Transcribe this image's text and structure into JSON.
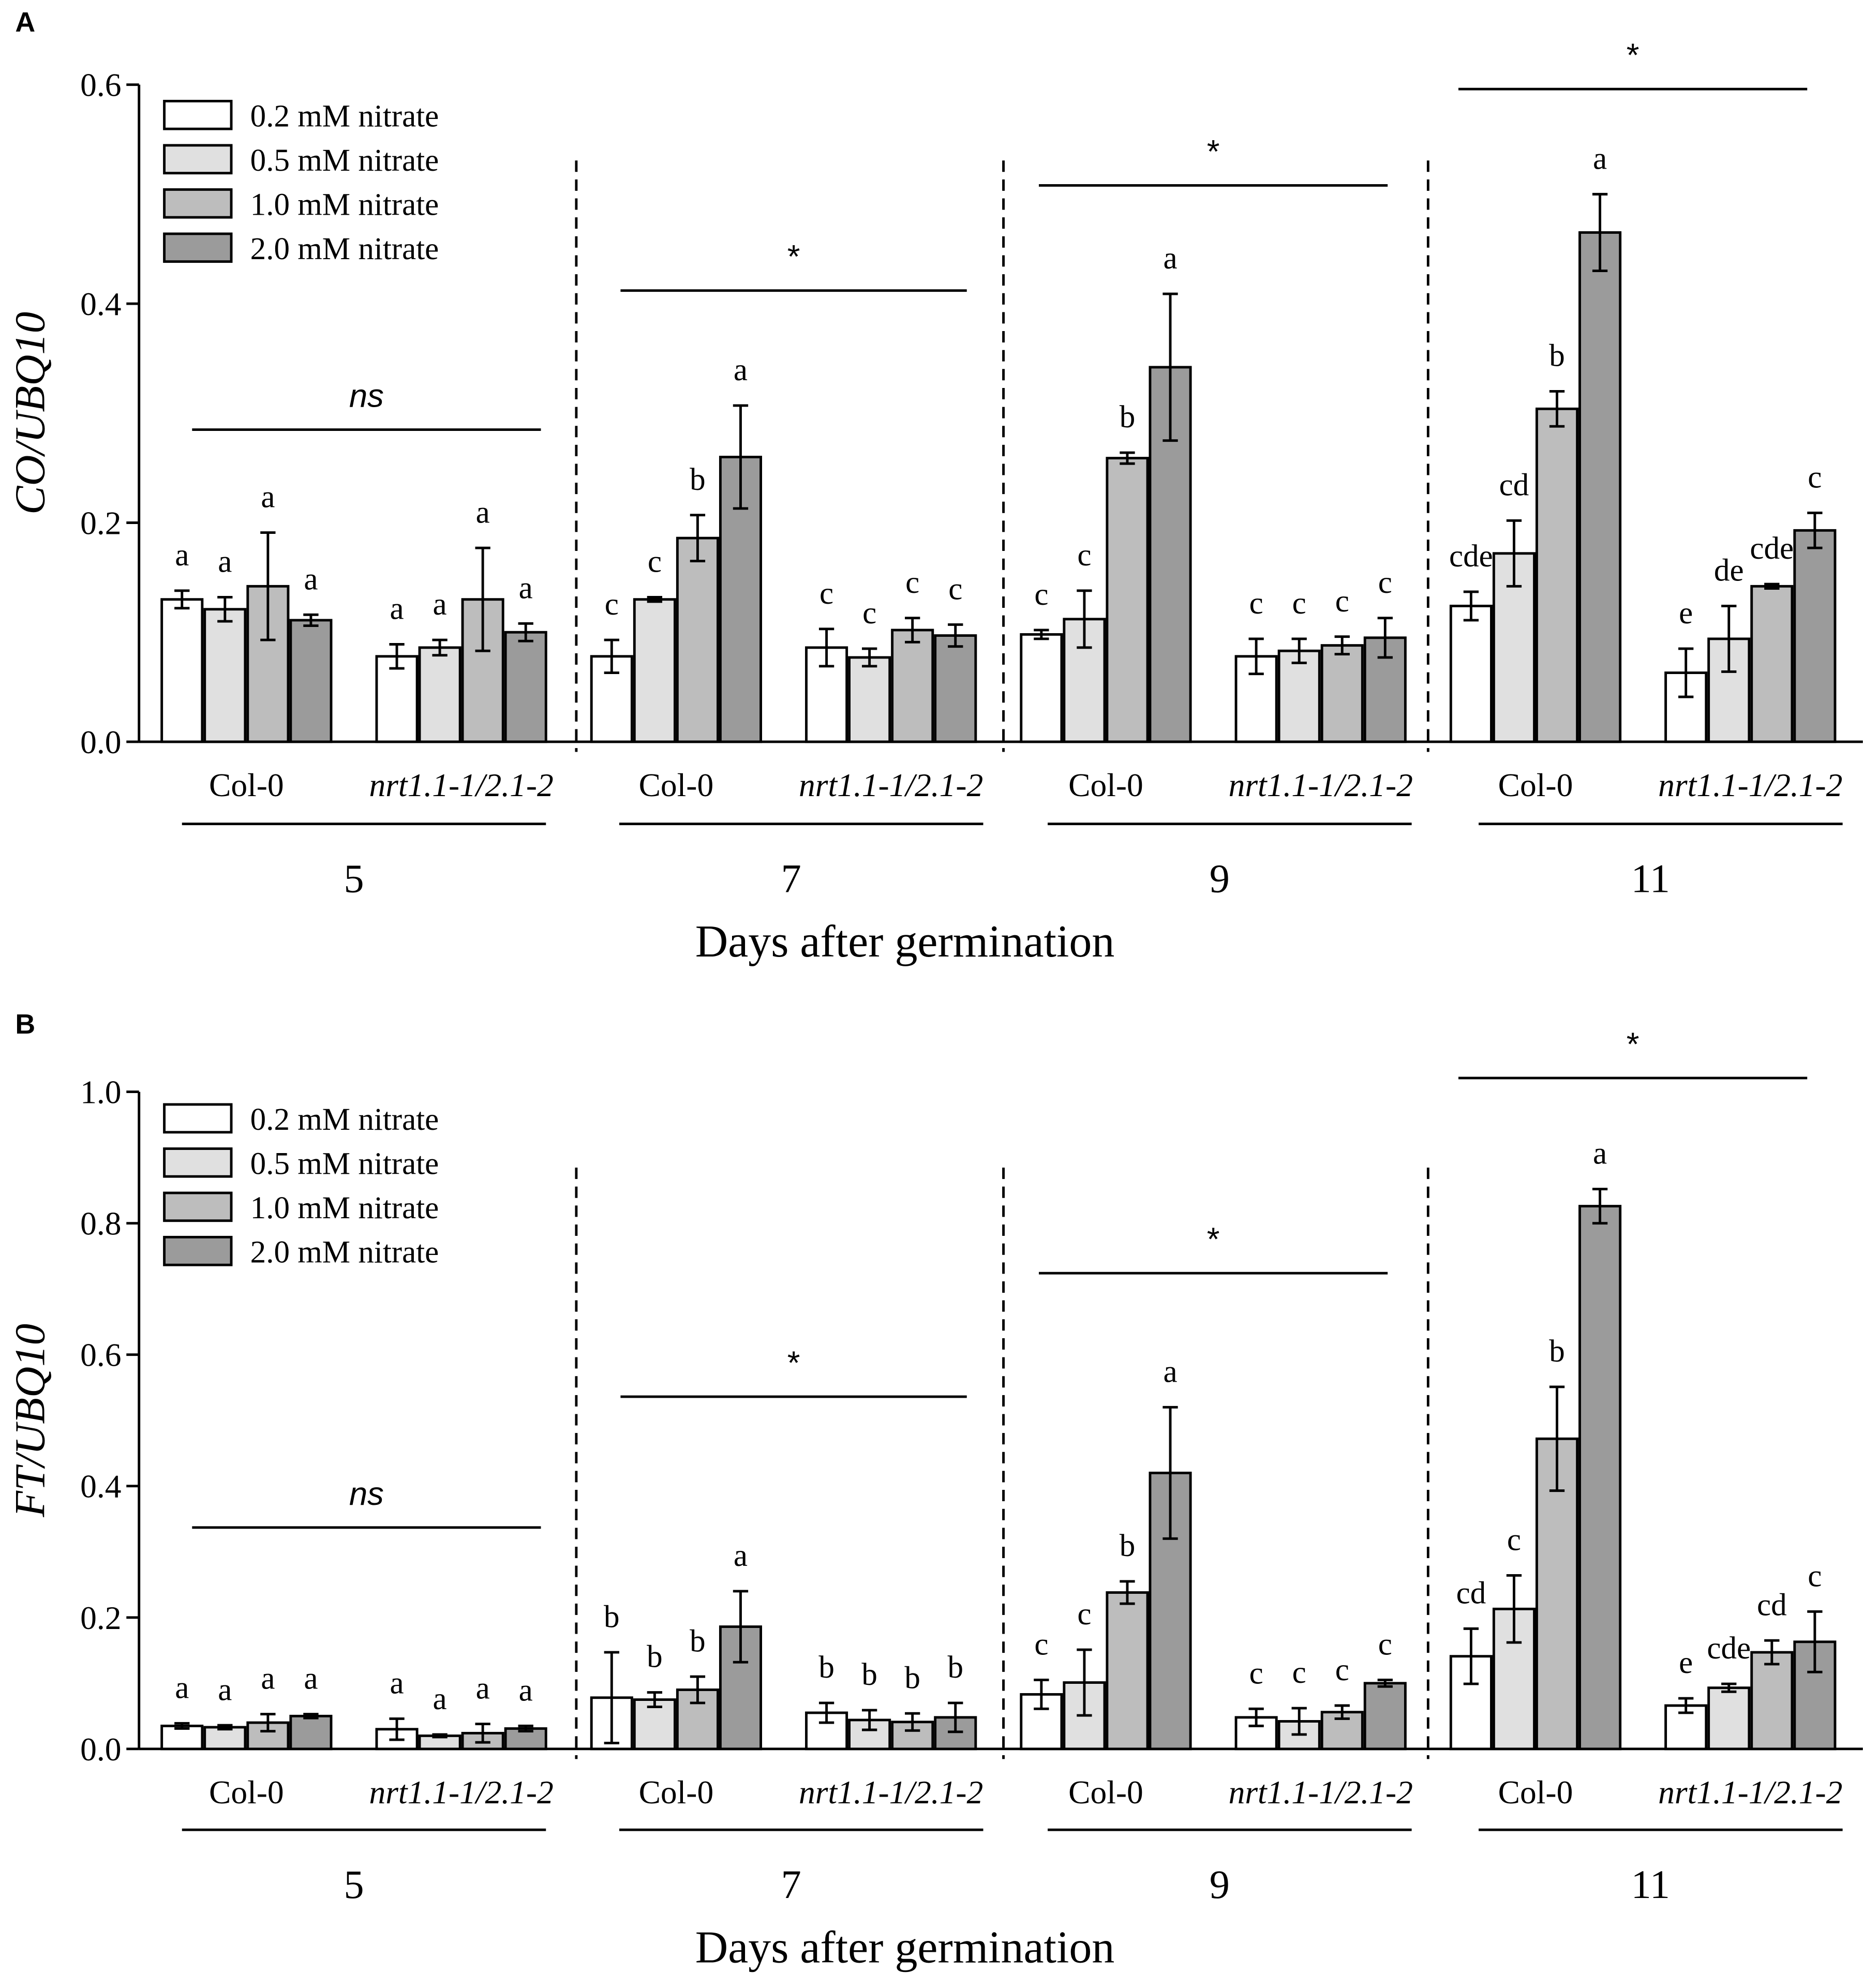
{
  "colors": {
    "c0.2": "#ffffff",
    "c0.5": "#e0e0e0",
    "c1.0": "#bdbdbd",
    "c2.0": "#9b9b9b",
    "ink": "#000000"
  },
  "legend": [
    "0.2 mM  nitrate",
    "0.5 mM  nitrate",
    "1.0 mM  nitrate",
    "2.0 mM  nitrate"
  ],
  "genotypes": [
    "Col-0",
    "nrt1.1-1/2.1-2"
  ],
  "days": [
    "5",
    "7",
    "9",
    "11"
  ],
  "xlabel": "Days after germination",
  "chart_data": [
    {
      "type": "bar",
      "panel": "A",
      "ylabel": "CO/UBQ10",
      "ylim": [
        0,
        0.6
      ],
      "yticks": [
        "0.0",
        "0.2",
        "0.4",
        "0.6"
      ],
      "groups": [
        {
          "day": "5",
          "genotype": "Col-0",
          "values": [
            0.13,
            0.121,
            0.142,
            0.111
          ],
          "errors": [
            0.008,
            0.011,
            0.049,
            0.005
          ],
          "letters": [
            "a",
            "a",
            "a",
            "a"
          ]
        },
        {
          "day": "5",
          "genotype": "nrt1.1-1/2.1-2",
          "values": [
            0.078,
            0.086,
            0.13,
            0.1
          ],
          "errors": [
            0.011,
            0.007,
            0.047,
            0.008
          ],
          "letters": [
            "a",
            "a",
            "a",
            "a"
          ]
        },
        {
          "day": "7",
          "genotype": "Col-0",
          "values": [
            0.078,
            0.13,
            0.186,
            0.26
          ],
          "errors": [
            0.015,
            0.002,
            0.021,
            0.047
          ],
          "letters": [
            "c",
            "c",
            "b",
            "a"
          ]
        },
        {
          "day": "7",
          "genotype": "nrt1.1-1/2.1-2",
          "values": [
            0.086,
            0.077,
            0.102,
            0.097
          ],
          "errors": [
            0.017,
            0.008,
            0.011,
            0.01
          ],
          "letters": [
            "c",
            "c",
            "c",
            "c"
          ]
        },
        {
          "day": "9",
          "genotype": "Col-0",
          "values": [
            0.098,
            0.112,
            0.259,
            0.342
          ],
          "errors": [
            0.004,
            0.026,
            0.005,
            0.067
          ],
          "letters": [
            "c",
            "c",
            "b",
            "a"
          ]
        },
        {
          "day": "9",
          "genotype": "nrt1.1-1/2.1-2",
          "values": [
            0.078,
            0.083,
            0.088,
            0.095
          ],
          "errors": [
            0.016,
            0.011,
            0.008,
            0.018
          ],
          "letters": [
            "c",
            "c",
            "c",
            "c"
          ]
        },
        {
          "day": "11",
          "genotype": "Col-0",
          "values": [
            0.124,
            0.172,
            0.304,
            0.465
          ],
          "errors": [
            0.013,
            0.03,
            0.016,
            0.035
          ],
          "letters": [
            "cde",
            "cd",
            "b",
            "a"
          ]
        },
        {
          "day": "11",
          "genotype": "nrt1.1-1/2.1-2",
          "values": [
            0.063,
            0.094,
            0.142,
            0.193
          ],
          "errors": [
            0.022,
            0.03,
            0.002,
            0.016
          ],
          "letters": [
            "e",
            "de",
            "cde",
            "c"
          ]
        }
      ],
      "significance": [
        {
          "day": "5",
          "label": "ns",
          "level": 0.285
        },
        {
          "day": "7",
          "label": "*",
          "level": 0.412
        },
        {
          "day": "9",
          "label": "*",
          "level": 0.508
        },
        {
          "day": "11",
          "label": "*",
          "level": 0.596
        }
      ],
      "legend_position": "top-left"
    },
    {
      "type": "bar",
      "panel": "B",
      "ylabel": "FT/UBQ10",
      "ylim": [
        0,
        1.0
      ],
      "yticks": [
        "0.0",
        "0.2",
        "0.4",
        "0.6",
        "0.8",
        "1.0"
      ],
      "groups": [
        {
          "day": "5",
          "genotype": "Col-0",
          "values": [
            0.035,
            0.033,
            0.04,
            0.05
          ],
          "errors": [
            0.004,
            0.003,
            0.013,
            0.003
          ],
          "letters": [
            "a",
            "a",
            "a",
            "a"
          ]
        },
        {
          "day": "5",
          "genotype": "nrt1.1-1/2.1-2",
          "values": [
            0.03,
            0.02,
            0.024,
            0.031
          ],
          "errors": [
            0.016,
            0.002,
            0.014,
            0.004
          ],
          "letters": [
            "a",
            "a",
            "a",
            "a"
          ]
        },
        {
          "day": "7",
          "genotype": "Col-0",
          "values": [
            0.078,
            0.075,
            0.09,
            0.186
          ],
          "errors": [
            0.069,
            0.011,
            0.02,
            0.054
          ],
          "letters": [
            "b",
            "b",
            "b",
            "a"
          ]
        },
        {
          "day": "7",
          "genotype": "nrt1.1-1/2.1-2",
          "values": [
            0.055,
            0.044,
            0.041,
            0.048
          ],
          "errors": [
            0.015,
            0.015,
            0.013,
            0.022
          ],
          "letters": [
            "b",
            "b",
            "b",
            "b"
          ]
        },
        {
          "day": "9",
          "genotype": "Col-0",
          "values": [
            0.083,
            0.101,
            0.238,
            0.42
          ],
          "errors": [
            0.022,
            0.05,
            0.017,
            0.1
          ],
          "letters": [
            "c",
            "c",
            "b",
            "a"
          ]
        },
        {
          "day": "9",
          "genotype": "nrt1.1-1/2.1-2",
          "values": [
            0.048,
            0.042,
            0.056,
            0.1
          ],
          "errors": [
            0.013,
            0.02,
            0.01,
            0.005
          ],
          "letters": [
            "c",
            "c",
            "c",
            "c"
          ]
        },
        {
          "day": "11",
          "genotype": "Col-0",
          "values": [
            0.141,
            0.213,
            0.472,
            0.826
          ],
          "errors": [
            0.042,
            0.051,
            0.079,
            0.026
          ],
          "letters": [
            "cd",
            "c",
            "b",
            "a"
          ]
        },
        {
          "day": "11",
          "genotype": "nrt1.1-1/2.1-2",
          "values": [
            0.066,
            0.093,
            0.147,
            0.163
          ],
          "errors": [
            0.011,
            0.006,
            0.018,
            0.046
          ],
          "letters": [
            "e",
            "cde",
            "cd",
            "c"
          ]
        }
      ],
      "significance": [
        {
          "day": "5",
          "label": "ns",
          "level": 0.337
        },
        {
          "day": "7",
          "label": "*",
          "level": 0.536
        },
        {
          "day": "9",
          "label": "*",
          "level": 0.724
        },
        {
          "day": "11",
          "label": "*",
          "level": 1.021
        }
      ],
      "legend_position": "top-left"
    }
  ]
}
